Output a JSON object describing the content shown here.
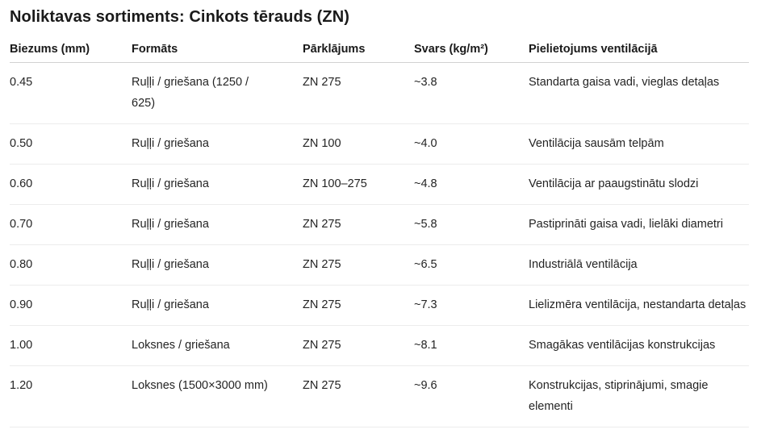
{
  "title": "Noliktavas sortiments: Cinkots tērauds (ZN)",
  "table": {
    "columns": [
      "Biezums (mm)",
      "Formāts",
      "Pārklājums",
      "Svars (kg/m²)",
      "Pielietojums ventilācijā"
    ],
    "column_keys": [
      "biezums",
      "formats",
      "parklajums",
      "svars",
      "pielietojums"
    ],
    "rows": [
      [
        "0.45",
        "Ruļļi / griešana (1250 / 625)",
        "ZN 275",
        "~3.8",
        "Standarta gaisa vadi, vieglas detaļas"
      ],
      [
        "0.50",
        "Ruļļi / griešana",
        "ZN 100",
        "~4.0",
        "Ventilācija sausām telpām"
      ],
      [
        "0.60",
        "Ruļļi / griešana",
        "ZN 100–275",
        "~4.8",
        "Ventilācija ar paaugstinātu slodzi"
      ],
      [
        "0.70",
        "Ruļļi / griešana",
        "ZN 275",
        "~5.8",
        "Pastiprināti gaisa vadi, lielāki diametri"
      ],
      [
        "0.80",
        "Ruļļi / griešana",
        "ZN 275",
        "~6.5",
        "Industriālā ventilācija"
      ],
      [
        "0.90",
        "Ruļļi / griešana",
        "ZN 275",
        "~7.3",
        "Lielizmēra ventilācija, nestandarta detaļas"
      ],
      [
        "1.00",
        "Loksnes / griešana",
        "ZN 275",
        "~8.1",
        "Smagākas ventilācijas konstrukcijas"
      ],
      [
        "1.20",
        "Loksnes (1500×3000 mm)",
        "ZN 275",
        "~9.6",
        "Konstrukcijas, stiprinājumi, smagie elementi"
      ]
    ]
  },
  "colors": {
    "background": "#ffffff",
    "title_text": "#1a1a1a",
    "body_text": "#242424",
    "header_border": "#d1d1d1",
    "row_border": "#ececec"
  }
}
